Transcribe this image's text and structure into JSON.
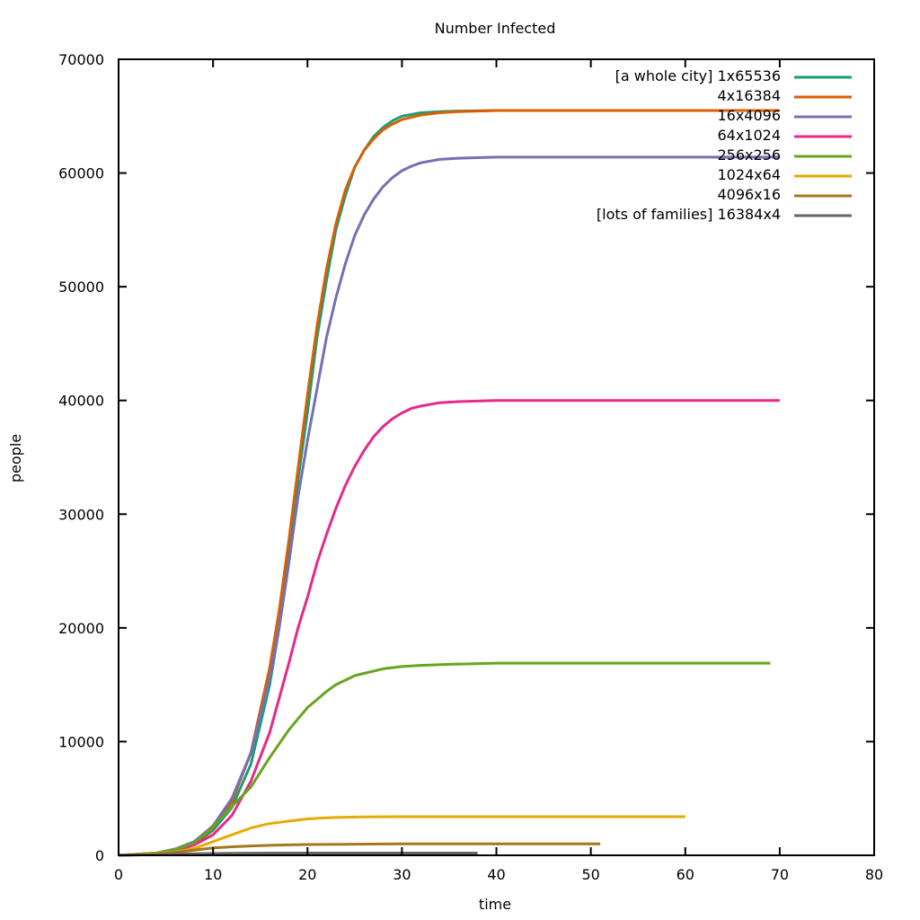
{
  "chart_data": {
    "type": "line",
    "title": "Number Infected",
    "xlabel": "time",
    "ylabel": "people",
    "xlim": [
      0,
      80
    ],
    "ylim": [
      0,
      70000
    ],
    "xticks": [
      0,
      10,
      20,
      30,
      40,
      50,
      60,
      70,
      80
    ],
    "yticks": [
      0,
      10000,
      20000,
      30000,
      40000,
      50000,
      60000,
      70000
    ],
    "grid": false,
    "legend_position": "top-right",
    "series": [
      {
        "name": "[a whole city] 1x65536",
        "color": "#1a9e76",
        "x": [
          0,
          4,
          6,
          8,
          10,
          12,
          14,
          16,
          17,
          18,
          19,
          20,
          21,
          22,
          23,
          24,
          25,
          26,
          27,
          28,
          29,
          30,
          32,
          34,
          36,
          40,
          50,
          60,
          70
        ],
        "y": [
          0,
          200,
          500,
          1000,
          2200,
          4200,
          8000,
          15000,
          20000,
          26000,
          33000,
          39000,
          45500,
          50500,
          55000,
          58000,
          60500,
          62000,
          63200,
          64000,
          64600,
          65000,
          65300,
          65400,
          65450,
          65500,
          65500,
          65500,
          65500
        ]
      },
      {
        "name": "4x16384",
        "color": "#d95f02",
        "x": [
          0,
          4,
          6,
          8,
          10,
          12,
          14,
          16,
          17,
          18,
          19,
          20,
          21,
          22,
          23,
          24,
          25,
          26,
          27,
          28,
          29,
          30,
          32,
          34,
          36,
          40,
          50,
          60,
          70
        ],
        "y": [
          0,
          200,
          550,
          1100,
          2400,
          4700,
          9000,
          16500,
          21500,
          27500,
          34000,
          40500,
          46500,
          51500,
          55500,
          58500,
          60500,
          62000,
          63000,
          63800,
          64300,
          64700,
          65100,
          65300,
          65400,
          65500,
          65500,
          65500,
          65500
        ]
      },
      {
        "name": "16x4096",
        "color": "#7570b3",
        "x": [
          0,
          4,
          6,
          8,
          10,
          12,
          14,
          16,
          17,
          18,
          19,
          20,
          21,
          22,
          23,
          24,
          25,
          26,
          27,
          28,
          29,
          30,
          31,
          32,
          34,
          36,
          40,
          50,
          60,
          70
        ],
        "y": [
          0,
          200,
          550,
          1200,
          2600,
          5000,
          9000,
          15500,
          20000,
          25500,
          31500,
          36500,
          41000,
          45500,
          49000,
          52000,
          54500,
          56300,
          57700,
          58800,
          59600,
          60200,
          60600,
          60900,
          61200,
          61300,
          61400,
          61400,
          61400,
          61400
        ]
      },
      {
        "name": "64x1024",
        "color": "#e7298a",
        "x": [
          0,
          4,
          6,
          8,
          10,
          12,
          14,
          16,
          17,
          18,
          19,
          20,
          21,
          22,
          23,
          24,
          25,
          26,
          27,
          28,
          29,
          30,
          31,
          32,
          34,
          36,
          40,
          50,
          60,
          70
        ],
        "y": [
          0,
          150,
          400,
          900,
          1800,
          3500,
          6500,
          10800,
          13800,
          16800,
          20000,
          22700,
          25700,
          28200,
          30500,
          32500,
          34200,
          35600,
          36800,
          37700,
          38400,
          38900,
          39300,
          39500,
          39800,
          39900,
          40000,
          40000,
          40000,
          40000
        ]
      },
      {
        "name": "256x256",
        "color": "#66a61e",
        "x": [
          0,
          4,
          6,
          8,
          10,
          12,
          14,
          15,
          16,
          17,
          18,
          19,
          20,
          21,
          22,
          23,
          24,
          25,
          26,
          28,
          30,
          32,
          35,
          40,
          50,
          60,
          69
        ],
        "y": [
          0,
          200,
          500,
          1100,
          2500,
          4300,
          6000,
          7300,
          8600,
          9800,
          11000,
          12000,
          13000,
          13700,
          14400,
          15000,
          15400,
          15800,
          16000,
          16400,
          16600,
          16700,
          16800,
          16900,
          16900,
          16900,
          16900
        ]
      },
      {
        "name": "1024x64",
        "color": "#e6ab02",
        "x": [
          0,
          4,
          6,
          8,
          10,
          12,
          14,
          16,
          18,
          20,
          22,
          24,
          26,
          30,
          40,
          50,
          60
        ],
        "y": [
          0,
          150,
          300,
          600,
          1200,
          1800,
          2400,
          2800,
          3000,
          3200,
          3300,
          3350,
          3380,
          3400,
          3400,
          3400,
          3400
        ]
      },
      {
        "name": "4096x16",
        "color": "#a6761d",
        "x": [
          0,
          4,
          6,
          8,
          10,
          12,
          14,
          16,
          18,
          20,
          25,
          30,
          40,
          51
        ],
        "y": [
          0,
          100,
          250,
          450,
          650,
          750,
          820,
          880,
          920,
          950,
          980,
          1000,
          1000,
          1000
        ]
      },
      {
        "name": "[lots of families] 16384x4",
        "color": "#666666",
        "x": [
          0,
          4,
          6,
          8,
          10,
          12,
          14,
          16,
          20,
          25,
          30,
          38
        ],
        "y": [
          0,
          60,
          100,
          140,
          160,
          180,
          190,
          195,
          200,
          200,
          200,
          200
        ]
      }
    ]
  }
}
